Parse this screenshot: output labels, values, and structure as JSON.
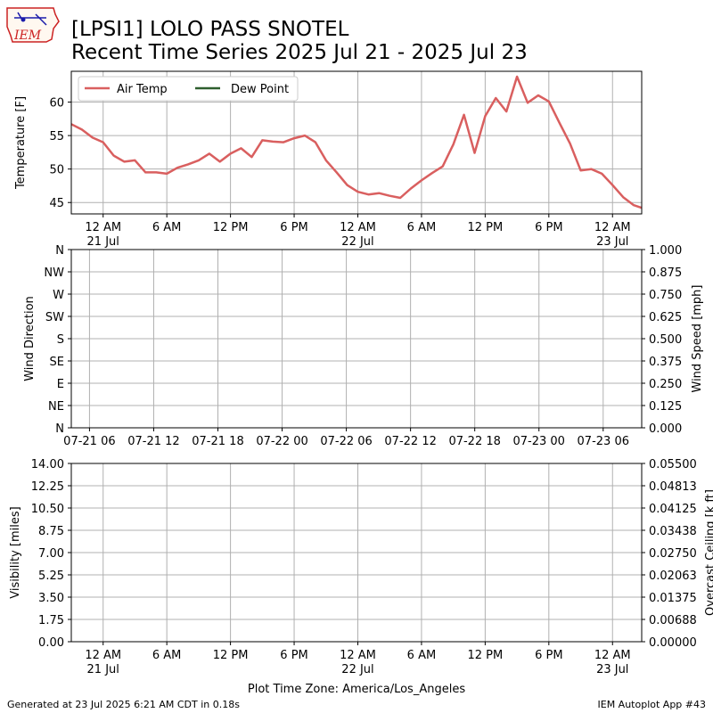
{
  "header": {
    "title_line1": "[LPSI1] LOLO PASS SNOTEL",
    "title_line2": "Recent Time Series 2025 Jul 21 - 2025 Jul 23",
    "logo_text": "IEM"
  },
  "footer": {
    "left": "Generated at 23 Jul 2025 6:21 AM CDT in 0.18s",
    "right": "IEM Autoplot App #43"
  },
  "colors": {
    "air_temp": "#d95f5f",
    "dew_point": "#2e5e2e",
    "ceiling_label": "#008000",
    "logo_red": "#cc2222",
    "logo_blue": "#1a1aaa"
  },
  "chart_data": [
    {
      "type": "line",
      "ylabel": "Temperature [F]",
      "ylim": [
        43.3,
        64.6
      ],
      "yticks": [
        45,
        50,
        55,
        60
      ],
      "grid": true,
      "legend_position": "upper-left",
      "x_tick_labels": [
        [
          "12 AM",
          "21 Jul"
        ],
        [
          "6 AM",
          ""
        ],
        [
          "12 PM",
          ""
        ],
        [
          "6 PM",
          ""
        ],
        [
          "12 AM",
          "22 Jul"
        ],
        [
          "6 AM",
          ""
        ],
        [
          "12 PM",
          ""
        ],
        [
          "6 PM",
          ""
        ],
        [
          "12 AM",
          "23 Jul"
        ]
      ],
      "x_tick_hours": [
        0,
        6,
        12,
        18,
        24,
        30,
        36,
        42,
        48
      ],
      "xlim_hours": [
        -3,
        50.75
      ],
      "series": [
        {
          "name": "Air Temp",
          "x_hours": [
            -3,
            -2,
            -1,
            0,
            1,
            2,
            3,
            4,
            5,
            6,
            7,
            8,
            9,
            10,
            11,
            12,
            13,
            14,
            15,
            16,
            17,
            18,
            19,
            20,
            21,
            22,
            23,
            24,
            25,
            26,
            27,
            28,
            29,
            30,
            31,
            32,
            33,
            34,
            35,
            36,
            37,
            38,
            39,
            40,
            41,
            42,
            43,
            44,
            45,
            46,
            47,
            48,
            49,
            50,
            50.75
          ],
          "values": [
            56.7,
            55.9,
            54.7,
            54.0,
            52.0,
            51.1,
            51.3,
            49.5,
            49.5,
            49.3,
            50.2,
            50.7,
            51.3,
            52.3,
            51.1,
            52.3,
            53.1,
            51.8,
            54.3,
            54.1,
            54.0,
            54.6,
            55.0,
            54.0,
            51.3,
            49.5,
            47.6,
            46.6,
            46.2,
            46.4,
            46.0,
            45.7,
            47.1,
            48.3,
            49.4,
            50.4,
            53.7,
            58.1,
            52.4,
            57.9,
            60.6,
            58.6,
            63.8,
            59.9,
            61.0,
            60.1,
            56.9,
            53.8,
            49.8,
            50.0,
            49.3,
            47.6,
            45.8,
            44.6,
            44.2
          ]
        },
        {
          "name": "Dew Point",
          "x_hours": [],
          "values": []
        }
      ]
    },
    {
      "type": "line",
      "ylabel": "Wind Direction",
      "ylabel_right": "Wind Speed [mph]",
      "y_left_ticks": [
        "N",
        "NE",
        "E",
        "SE",
        "S",
        "SW",
        "W",
        "NW",
        "N"
      ],
      "y_left_range": [
        0,
        360
      ],
      "y_right_ticks": [
        "0.000",
        "0.125",
        "0.250",
        "0.375",
        "0.500",
        "0.625",
        "0.750",
        "0.875",
        "1.000"
      ],
      "y_right_range": [
        0,
        1
      ],
      "x_tick_labels": [
        "07-21 06",
        "07-21 12",
        "07-21 18",
        "07-22 00",
        "07-22 06",
        "07-22 12",
        "07-22 18",
        "07-23 00",
        "07-23 06"
      ],
      "x_tick_hours": [
        6,
        12,
        18,
        24,
        30,
        36,
        42,
        48,
        54
      ],
      "xlim_hours": [
        4.3,
        57.6
      ],
      "grid": true,
      "series": []
    },
    {
      "type": "line",
      "ylabel": "Visibility [miles]",
      "ylabel_right": "Overcast Ceiling [k ft]",
      "y_left_ticks": [
        "0.00",
        "1.75",
        "3.50",
        "5.25",
        "7.00",
        "8.75",
        "10.50",
        "12.25",
        "14.00"
      ],
      "y_left_range": [
        0,
        14
      ],
      "y_right_ticks": [
        "0.00000",
        "0.00688",
        "0.01375",
        "0.02063",
        "0.02750",
        "0.03438",
        "0.04125",
        "0.04813",
        "0.05500"
      ],
      "y_right_range": [
        0,
        0.055
      ],
      "x_tick_labels": [
        [
          "12 AM",
          "21 Jul"
        ],
        [
          "6 AM",
          ""
        ],
        [
          "12 PM",
          ""
        ],
        [
          "6 PM",
          ""
        ],
        [
          "12 AM",
          "22 Jul"
        ],
        [
          "6 AM",
          ""
        ],
        [
          "12 PM",
          ""
        ],
        [
          "6 PM",
          ""
        ],
        [
          "12 AM",
          "23 Jul"
        ]
      ],
      "x_tick_hours": [
        0,
        6,
        12,
        18,
        24,
        30,
        36,
        42,
        48
      ],
      "xlim_hours": [
        -3,
        50.75
      ],
      "xlabel": "Plot Time Zone: America/Los_Angeles",
      "grid": true,
      "series": []
    }
  ]
}
